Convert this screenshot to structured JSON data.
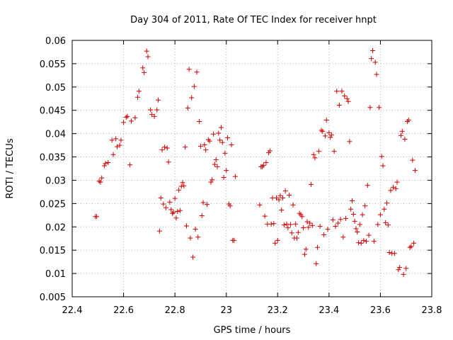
{
  "chart_data": {
    "type": "scatter",
    "title": "Day 304 of 2011, Rate Of TEC Index for receiver hnpt",
    "xlabel": "GPS time / hours",
    "ylabel": "ROTI / TECUs",
    "xlim": [
      22.4,
      23.8
    ],
    "ylim": [
      0.005,
      0.06
    ],
    "x_ticks": [
      "22.4",
      "22.6",
      "22.8",
      "23",
      "23.2",
      "23.4",
      "23.6",
      "23.8"
    ],
    "y_ticks": [
      "0.005",
      "0.01",
      "0.015",
      "0.02",
      "0.025",
      "0.03",
      "0.035",
      "0.04",
      "0.045",
      "0.05",
      "0.055",
      "0.06"
    ],
    "grid": true,
    "marker": "+",
    "color": "#cc0000",
    "series": [
      {
        "points": [
          [
            22.49,
            0.0222
          ],
          [
            22.495,
            0.0222
          ],
          [
            22.505,
            0.0298
          ],
          [
            22.51,
            0.0296
          ],
          [
            22.515,
            0.0305
          ],
          [
            22.525,
            0.0331
          ],
          [
            22.53,
            0.0336
          ],
          [
            22.54,
            0.0338
          ],
          [
            22.555,
            0.0386
          ],
          [
            22.56,
            0.0355
          ],
          [
            22.57,
            0.0389
          ],
          [
            22.575,
            0.0372
          ],
          [
            22.585,
            0.0375
          ],
          [
            22.59,
            0.0386
          ],
          [
            22.6,
            0.0424
          ],
          [
            22.61,
            0.0435
          ],
          [
            22.615,
            0.0437
          ],
          [
            22.625,
            0.0333
          ],
          [
            22.63,
            0.0427
          ],
          [
            22.645,
            0.0434
          ],
          [
            22.655,
            0.0478
          ],
          [
            22.66,
            0.0491
          ],
          [
            22.675,
            0.0541
          ],
          [
            22.68,
            0.0531
          ],
          [
            22.69,
            0.0577
          ],
          [
            22.695,
            0.0565
          ],
          [
            22.705,
            0.0451
          ],
          [
            22.71,
            0.0441
          ],
          [
            22.72,
            0.0437
          ],
          [
            22.73,
            0.0451
          ],
          [
            22.735,
            0.0472
          ],
          [
            22.74,
            0.0191
          ],
          [
            22.745,
            0.0262
          ],
          [
            22.75,
            0.0365
          ],
          [
            22.755,
            0.0249
          ],
          [
            22.76,
            0.0371
          ],
          [
            22.765,
            0.0241
          ],
          [
            22.77,
            0.0369
          ],
          [
            22.775,
            0.0339
          ],
          [
            22.78,
            0.0253
          ],
          [
            22.785,
            0.0237
          ],
          [
            22.79,
            0.0229
          ],
          [
            22.795,
            0.0231
          ],
          [
            22.8,
            0.0261
          ],
          [
            22.805,
            0.0219
          ],
          [
            22.81,
            0.0233
          ],
          [
            22.815,
            0.0279
          ],
          [
            22.82,
            0.0235
          ],
          [
            22.825,
            0.0287
          ],
          [
            22.83,
            0.0295
          ],
          [
            22.835,
            0.0288
          ],
          [
            22.84,
            0.0371
          ],
          [
            22.845,
            0.0202
          ],
          [
            22.85,
            0.0455
          ],
          [
            22.855,
            0.0538
          ],
          [
            22.86,
            0.0176
          ],
          [
            22.865,
            0.0477
          ],
          [
            22.87,
            0.0135
          ],
          [
            22.875,
            0.0501
          ],
          [
            22.88,
            0.0195
          ],
          [
            22.885,
            0.0532
          ],
          [
            22.89,
            0.0178
          ],
          [
            22.895,
            0.0426
          ],
          [
            22.9,
            0.0373
          ],
          [
            22.905,
            0.0224
          ],
          [
            22.91,
            0.0252
          ],
          [
            22.915,
            0.0376
          ],
          [
            22.92,
            0.0365
          ],
          [
            22.925,
            0.0248
          ],
          [
            22.93,
            0.0387
          ],
          [
            22.935,
            0.0384
          ],
          [
            22.94,
            0.0296
          ],
          [
            22.945,
            0.0301
          ],
          [
            22.95,
            0.0399
          ],
          [
            22.955,
            0.0334
          ],
          [
            22.96,
            0.0344
          ],
          [
            22.965,
            0.0329
          ],
          [
            22.97,
            0.0401
          ],
          [
            22.975,
            0.0386
          ],
          [
            22.98,
            0.0413
          ],
          [
            22.985,
            0.0381
          ],
          [
            22.99,
            0.0306
          ],
          [
            22.995,
            0.0358
          ],
          [
            23.0,
            0.0321
          ],
          [
            23.005,
            0.0391
          ],
          [
            23.01,
            0.0249
          ],
          [
            23.015,
            0.0245
          ],
          [
            23.02,
            0.0376
          ],
          [
            23.025,
            0.0171
          ],
          [
            23.03,
            0.0171
          ],
          [
            23.035,
            0.0308
          ],
          [
            23.13,
            0.0247
          ],
          [
            23.135,
            0.0329
          ],
          [
            23.14,
            0.0329
          ],
          [
            23.145,
            0.0332
          ],
          [
            23.15,
            0.0223
          ],
          [
            23.155,
            0.0338
          ],
          [
            23.16,
            0.0206
          ],
          [
            23.165,
            0.0359
          ],
          [
            23.17,
            0.0363
          ],
          [
            23.175,
            0.0206
          ],
          [
            23.18,
            0.0262
          ],
          [
            23.185,
            0.0207
          ],
          [
            23.19,
            0.0165
          ],
          [
            23.195,
            0.0262
          ],
          [
            23.2,
            0.0171
          ],
          [
            23.205,
            0.0258
          ],
          [
            23.21,
            0.0267
          ],
          [
            23.215,
            0.0236
          ],
          [
            23.22,
            0.0262
          ],
          [
            23.225,
            0.0204
          ],
          [
            23.23,
            0.0277
          ],
          [
            23.235,
            0.0206
          ],
          [
            23.24,
            0.0198
          ],
          [
            23.245,
            0.0268
          ],
          [
            23.25,
            0.0205
          ],
          [
            23.255,
            0.0187
          ],
          [
            23.26,
            0.0247
          ],
          [
            23.265,
            0.0176
          ],
          [
            23.27,
            0.0206
          ],
          [
            23.275,
            0.0176
          ],
          [
            23.28,
            0.0188
          ],
          [
            23.285,
            0.0229
          ],
          [
            23.29,
            0.0226
          ],
          [
            23.295,
            0.0222
          ],
          [
            23.3,
            0.0198
          ],
          [
            23.305,
            0.0141
          ],
          [
            23.31,
            0.0152
          ],
          [
            23.315,
            0.0211
          ],
          [
            23.32,
            0.0199
          ],
          [
            23.325,
            0.0208
          ],
          [
            23.33,
            0.0291
          ],
          [
            23.335,
            0.0203
          ],
          [
            23.34,
            0.0355
          ],
          [
            23.345,
            0.0348
          ],
          [
            23.35,
            0.0121
          ],
          [
            23.355,
            0.0156
          ],
          [
            23.36,
            0.0362
          ],
          [
            23.365,
            0.0201
          ],
          [
            23.37,
            0.0407
          ],
          [
            23.375,
            0.0405
          ],
          [
            23.38,
            0.0183
          ],
          [
            23.385,
            0.0395
          ],
          [
            23.39,
            0.0429
          ],
          [
            23.395,
            0.0195
          ],
          [
            23.4,
            0.0402
          ],
          [
            23.405,
            0.0392
          ],
          [
            23.41,
            0.0397
          ],
          [
            23.415,
            0.0215
          ],
          [
            23.42,
            0.0362
          ],
          [
            23.425,
            0.0201
          ],
          [
            23.43,
            0.0491
          ],
          [
            23.435,
            0.0208
          ],
          [
            23.44,
            0.0461
          ],
          [
            23.445,
            0.0216
          ],
          [
            23.45,
            0.0491
          ],
          [
            23.455,
            0.0178
          ],
          [
            23.46,
            0.0481
          ],
          [
            23.465,
            0.0218
          ],
          [
            23.47,
            0.0475
          ],
          [
            23.475,
            0.0469
          ],
          [
            23.48,
            0.0383
          ],
          [
            23.485,
            0.0238
          ],
          [
            23.49,
            0.0256
          ],
          [
            23.495,
            0.0227
          ],
          [
            23.5,
            0.0212
          ],
          [
            23.505,
            0.0196
          ],
          [
            23.51,
            0.0189
          ],
          [
            23.515,
            0.0166
          ],
          [
            23.52,
            0.0205
          ],
          [
            23.525,
            0.0165
          ],
          [
            23.53,
            0.0226
          ],
          [
            23.535,
            0.0171
          ],
          [
            23.54,
            0.0245
          ],
          [
            23.545,
            0.0169
          ],
          [
            23.55,
            0.0289
          ],
          [
            23.555,
            0.0182
          ],
          [
            23.56,
            0.0456
          ],
          [
            23.565,
            0.0561
          ],
          [
            23.57,
            0.0578
          ],
          [
            23.575,
            0.0169
          ],
          [
            23.58,
            0.0553
          ],
          [
            23.585,
            0.0527
          ],
          [
            23.59,
            0.0205
          ],
          [
            23.595,
            0.0456
          ],
          [
            23.6,
            0.0226
          ],
          [
            23.605,
            0.0351
          ],
          [
            23.61,
            0.0331
          ],
          [
            23.615,
            0.0238
          ],
          [
            23.62,
            0.0209
          ],
          [
            23.625,
            0.0251
          ],
          [
            23.63,
            0.0204
          ],
          [
            23.635,
            0.0145
          ],
          [
            23.64,
            0.0278
          ],
          [
            23.645,
            0.0143
          ],
          [
            23.65,
            0.0285
          ],
          [
            23.655,
            0.0143
          ],
          [
            23.66,
            0.0282
          ],
          [
            23.665,
            0.0296
          ],
          [
            23.67,
            0.0108
          ],
          [
            23.675,
            0.0113
          ],
          [
            23.68,
            0.0396
          ],
          [
            23.685,
            0.0405
          ],
          [
            23.69,
            0.0098
          ],
          [
            23.695,
            0.0388
          ],
          [
            23.7,
            0.0111
          ],
          [
            23.705,
            0.0426
          ],
          [
            23.71,
            0.0429
          ],
          [
            23.715,
            0.0156
          ],
          [
            23.72,
            0.0158
          ],
          [
            23.725,
            0.0343
          ],
          [
            23.73,
            0.0165
          ],
          [
            23.735,
            0.0321
          ]
        ]
      }
    ]
  }
}
